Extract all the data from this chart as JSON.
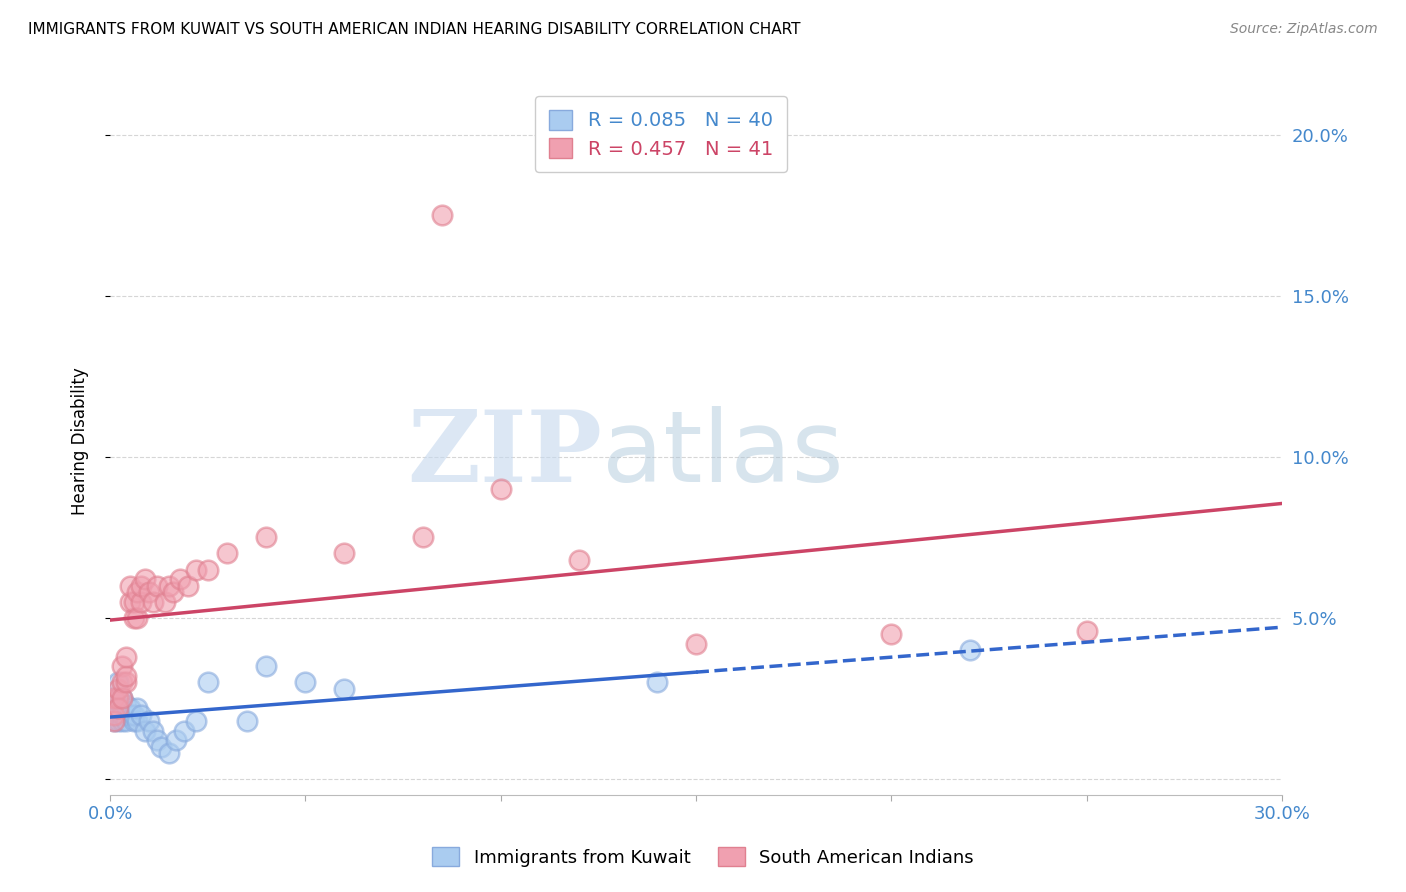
{
  "title": "IMMIGRANTS FROM KUWAIT VS SOUTH AMERICAN INDIAN HEARING DISABILITY CORRELATION CHART",
  "source": "Source: ZipAtlas.com",
  "ylabel": "Hearing Disability",
  "xlim": [
    0.0,
    0.3
  ],
  "ylim": [
    -0.005,
    0.215
  ],
  "yticks": [
    0.0,
    0.05,
    0.1,
    0.15,
    0.2
  ],
  "ytick_labels": [
    "",
    "5.0%",
    "10.0%",
    "15.0%",
    "20.0%"
  ],
  "xticks": [
    0.0,
    0.05,
    0.1,
    0.15,
    0.2,
    0.25,
    0.3
  ],
  "xtick_labels": [
    "0.0%",
    "",
    "",
    "",
    "",
    "",
    "30.0%"
  ],
  "kuwait_R": 0.085,
  "kuwait_N": 40,
  "samind_R": 0.457,
  "samind_N": 41,
  "kuwait_color": "#aaccf0",
  "samind_color": "#f0a0b0",
  "kuwait_edge_color": "#88aadd",
  "samind_edge_color": "#e08090",
  "kuwait_line_color": "#3366cc",
  "samind_line_color": "#cc4466",
  "axis_color": "#4488cc",
  "grid_color": "#cccccc",
  "watermark_zip": "ZIP",
  "watermark_atlas": "atlas",
  "kuwait_x": [
    0.001,
    0.001,
    0.001,
    0.001,
    0.002,
    0.002,
    0.002,
    0.002,
    0.002,
    0.003,
    0.003,
    0.003,
    0.003,
    0.003,
    0.004,
    0.004,
    0.004,
    0.005,
    0.005,
    0.006,
    0.006,
    0.007,
    0.007,
    0.008,
    0.009,
    0.01,
    0.011,
    0.012,
    0.013,
    0.015,
    0.017,
    0.019,
    0.022,
    0.025,
    0.035,
    0.04,
    0.05,
    0.06,
    0.14,
    0.22
  ],
  "kuwait_y": [
    0.02,
    0.023,
    0.018,
    0.025,
    0.022,
    0.02,
    0.025,
    0.018,
    0.03,
    0.02,
    0.022,
    0.018,
    0.025,
    0.02,
    0.02,
    0.023,
    0.018,
    0.02,
    0.022,
    0.018,
    0.02,
    0.018,
    0.022,
    0.02,
    0.015,
    0.018,
    0.015,
    0.012,
    0.01,
    0.008,
    0.012,
    0.015,
    0.018,
    0.03,
    0.018,
    0.035,
    0.03,
    0.028,
    0.03,
    0.04
  ],
  "samind_x": [
    0.001,
    0.001,
    0.001,
    0.002,
    0.002,
    0.002,
    0.003,
    0.003,
    0.003,
    0.004,
    0.004,
    0.004,
    0.005,
    0.005,
    0.006,
    0.006,
    0.007,
    0.007,
    0.008,
    0.008,
    0.009,
    0.01,
    0.011,
    0.012,
    0.014,
    0.015,
    0.016,
    0.018,
    0.02,
    0.022,
    0.025,
    0.03,
    0.04,
    0.06,
    0.08,
    0.1,
    0.12,
    0.15,
    0.2,
    0.25,
    0.085
  ],
  "samind_y": [
    0.02,
    0.025,
    0.018,
    0.025,
    0.028,
    0.022,
    0.03,
    0.025,
    0.035,
    0.03,
    0.032,
    0.038,
    0.055,
    0.06,
    0.05,
    0.055,
    0.058,
    0.05,
    0.055,
    0.06,
    0.062,
    0.058,
    0.055,
    0.06,
    0.055,
    0.06,
    0.058,
    0.062,
    0.06,
    0.065,
    0.065,
    0.07,
    0.075,
    0.07,
    0.075,
    0.09,
    0.068,
    0.042,
    0.045,
    0.046,
    0.175
  ]
}
